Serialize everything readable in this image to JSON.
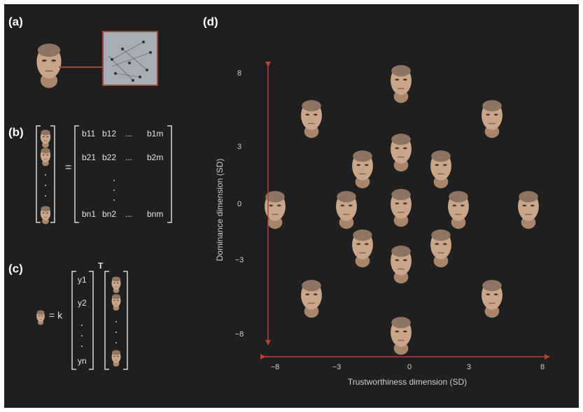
{
  "panels": [
    {
      "label": "(a)"
    },
    {
      "label": "(b)",
      "equals": "=",
      "matrix": {
        "rows": [
          [
            "b11",
            "b12",
            "...",
            "b1m"
          ],
          [
            "b21",
            "b22",
            "...",
            "b2m"
          ],
          [
            "bn1",
            "bn2",
            "...",
            "bnm"
          ]
        ]
      }
    },
    {
      "label": "(c)",
      "operator": "= k",
      "vector": [
        "y1",
        "y2",
        "yn"
      ],
      "transpose": "T"
    },
    {
      "label": "(d)",
      "x_axis": {
        "title": "Trustworthiness dimension (SD)",
        "ticks": [
          "−8",
          "−3",
          "0",
          "3",
          "8"
        ]
      },
      "y_axis": {
        "title": "Dominance dimension (SD)",
        "ticks": [
          "8",
          "3",
          "0",
          "−3",
          "−8"
        ]
      }
    }
  ]
}
